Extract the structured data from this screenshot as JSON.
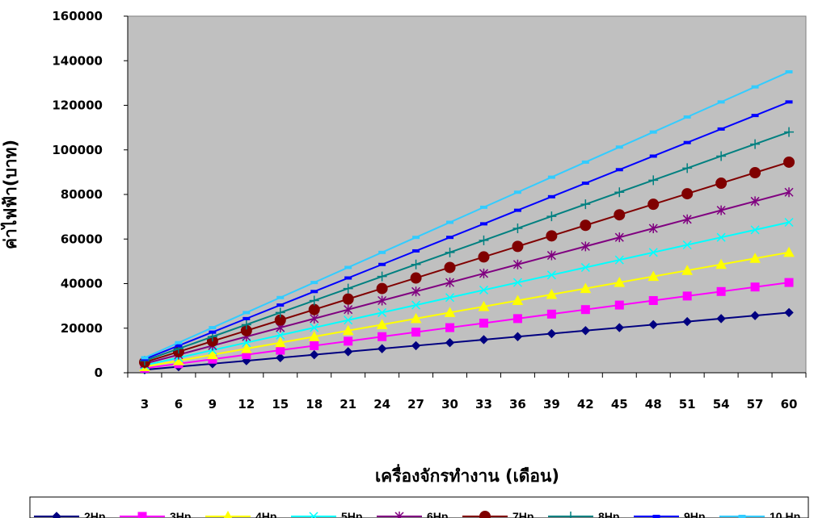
{
  "chart_data": {
    "type": "line",
    "xlabel": "เครื่องจักรทำงาน (เดือน)",
    "ylabel": "ค่าไฟฟ้า(บาท)",
    "ylim": [
      0,
      160000
    ],
    "yticks": [
      0,
      20000,
      40000,
      60000,
      80000,
      100000,
      120000,
      140000,
      160000
    ],
    "x": [
      3,
      6,
      9,
      12,
      15,
      18,
      21,
      24,
      27,
      30,
      33,
      36,
      39,
      42,
      45,
      48,
      51,
      54,
      57,
      60
    ],
    "plot_background": "#c0c0c0",
    "grid": false,
    "legend_position": "bottom",
    "series": [
      {
        "name": "2Hp",
        "color": "#000080",
        "marker": "diamond",
        "values": [
          1350,
          2700,
          4050,
          5400,
          6750,
          8100,
          9450,
          10800,
          12150,
          13500,
          14850,
          16200,
          17550,
          18900,
          20250,
          21600,
          22950,
          24300,
          25650,
          27000
        ]
      },
      {
        "name": "3Hp",
        "color": "#ff00ff",
        "marker": "square",
        "values": [
          2025,
          4050,
          6075,
          8100,
          10125,
          12150,
          14175,
          16200,
          18225,
          20250,
          22275,
          24300,
          26325,
          28350,
          30375,
          32400,
          34425,
          36450,
          38475,
          40500
        ]
      },
      {
        "name": "4Hp",
        "color": "#ffff00",
        "marker": "triangle",
        "values": [
          2700,
          5400,
          8100,
          10800,
          13500,
          16200,
          18900,
          21600,
          24300,
          27000,
          29700,
          32400,
          35100,
          37800,
          40500,
          43200,
          45900,
          48600,
          51300,
          54000
        ]
      },
      {
        "name": "5Hp",
        "color": "#00ffff",
        "marker": "x",
        "values": [
          3375,
          6750,
          10125,
          13500,
          16875,
          20250,
          23625,
          27000,
          30375,
          33750,
          37125,
          40500,
          43875,
          47250,
          50625,
          54000,
          57375,
          60750,
          64125,
          67500
        ]
      },
      {
        "name": "6Hp",
        "color": "#800080",
        "marker": "star",
        "values": [
          4050,
          8100,
          12150,
          16200,
          20250,
          24300,
          28350,
          32400,
          36450,
          40500,
          44550,
          48600,
          52650,
          56700,
          60750,
          64800,
          68850,
          72900,
          76950,
          81000
        ]
      },
      {
        "name": "7Hp",
        "color": "#800000",
        "marker": "circle",
        "values": [
          4725,
          9450,
          14175,
          18900,
          23625,
          28350,
          33075,
          37800,
          42525,
          47250,
          51975,
          56700,
          61425,
          66150,
          70875,
          75600,
          80325,
          85050,
          89775,
          94500
        ]
      },
      {
        "name": "8Hp",
        "color": "#008080",
        "marker": "plus",
        "values": [
          5400,
          10800,
          16200,
          21600,
          27000,
          32400,
          37800,
          43200,
          48600,
          54000,
          59400,
          64800,
          70200,
          75600,
          81000,
          86400,
          91800,
          97200,
          102600,
          108000
        ]
      },
      {
        "name": "9Hp",
        "color": "#0000ff",
        "marker": "dash",
        "values": [
          6075,
          12150,
          18225,
          24300,
          30375,
          36450,
          42525,
          48600,
          54675,
          60750,
          66825,
          72900,
          78975,
          85050,
          91125,
          97200,
          103275,
          109350,
          115425,
          121500
        ]
      },
      {
        "name": "10 Hp",
        "color": "#33ccff",
        "marker": "dash",
        "values": [
          6750,
          13500,
          20250,
          27000,
          33750,
          40500,
          47250,
          54000,
          60750,
          67500,
          74250,
          81000,
          87750,
          94500,
          101250,
          108000,
          114750,
          121500,
          128250,
          135000
        ]
      }
    ]
  }
}
